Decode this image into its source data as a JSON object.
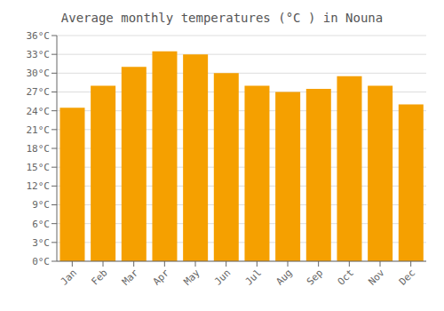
{
  "chart_data": {
    "type": "bar",
    "title": "Average monthly temperatures (°C ) in Nouna",
    "categories": [
      "Jan",
      "Feb",
      "Mar",
      "Apr",
      "May",
      "Jun",
      "Jul",
      "Aug",
      "Sep",
      "Oct",
      "Nov",
      "Dec"
    ],
    "values": [
      24.5,
      28.0,
      31.0,
      33.5,
      33.0,
      30.0,
      28.0,
      27.0,
      27.5,
      29.5,
      28.0,
      25.0
    ],
    "color": "#F5A000",
    "ylim": [
      0,
      36
    ],
    "yticks": [
      {
        "value": 0,
        "label": "0°C"
      },
      {
        "value": 3,
        "label": "3°C"
      },
      {
        "value": 6,
        "label": "6°C"
      },
      {
        "value": 9,
        "label": "9°C"
      },
      {
        "value": 12,
        "label": "12°C"
      },
      {
        "value": 15,
        "label": "15°C"
      },
      {
        "value": 18,
        "label": "18°C"
      },
      {
        "value": 21,
        "label": "21°C"
      },
      {
        "value": 24,
        "label": "24°C"
      },
      {
        "value": 27,
        "label": "27°C"
      },
      {
        "value": 30,
        "label": "30°C"
      },
      {
        "value": 33,
        "label": "33°C"
      },
      {
        "value": 36,
        "label": "36°C"
      }
    ],
    "grid": true
  }
}
